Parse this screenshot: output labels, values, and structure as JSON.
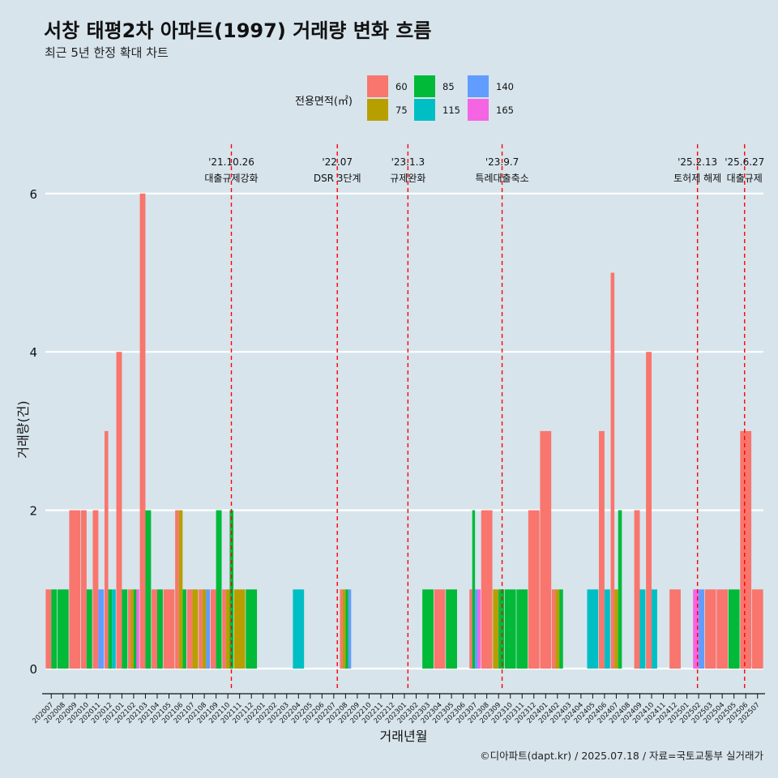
{
  "title": "서창 태평2차 아파트(1997) 거래량 변화 흐름",
  "subtitle": "최근 5년 한정 확대 차트",
  "caption": "©디아파트(dapt.kr) / 2025.07.18 / 자료=국토교통부 실거래가",
  "legend": {
    "title": "전용면적(㎡)",
    "items": [
      {
        "label": "60",
        "color": "#F8766D"
      },
      {
        "label": "75",
        "color": "#B79F00"
      },
      {
        "label": "85",
        "color": "#00BA38"
      },
      {
        "label": "115",
        "color": "#00BFC4"
      },
      {
        "label": "140",
        "color": "#619CFF"
      },
      {
        "label": "165",
        "color": "#F564E3"
      }
    ]
  },
  "chart_data": {
    "type": "bar",
    "xlabel": "거래년월",
    "ylabel": "거래량(건)",
    "ylim": [
      0,
      6.3
    ],
    "yticks": [
      "0",
      "2",
      "4",
      "6"
    ],
    "grid": "horizontal",
    "legend_position": "top",
    "categories": [
      "202007",
      "202008",
      "202009",
      "202010",
      "202011",
      "202012",
      "202101",
      "202102",
      "202103",
      "202104",
      "202105",
      "202106",
      "202107",
      "202108",
      "202109",
      "202110",
      "202111",
      "202112",
      "202201",
      "202202",
      "202203",
      "202204",
      "202205",
      "202206",
      "202207",
      "202208",
      "202209",
      "202210",
      "202211",
      "202212",
      "202301",
      "202302",
      "202303",
      "202304",
      "202305",
      "202306",
      "202307",
      "202308",
      "202309",
      "202310",
      "202311",
      "202312",
      "202401",
      "202402",
      "202403",
      "202404",
      "202405",
      "202406",
      "202407",
      "202408",
      "202409",
      "202410",
      "202411",
      "202412",
      "202501",
      "202502",
      "202503",
      "202504",
      "202505",
      "202506",
      "202507"
    ],
    "bars": [
      {
        "month": "202007",
        "segments": [
          {
            "area": "60",
            "count": 1
          },
          {
            "area": "85",
            "count": 1
          }
        ]
      },
      {
        "month": "202008",
        "segments": [
          {
            "area": "85",
            "count": 1
          }
        ]
      },
      {
        "month": "202009",
        "segments": [
          {
            "area": "60",
            "count": 2
          }
        ]
      },
      {
        "month": "202010",
        "segments": [
          {
            "area": "60",
            "count": 2
          },
          {
            "area": "85",
            "count": 1
          }
        ]
      },
      {
        "month": "202011",
        "segments": [
          {
            "area": "60",
            "count": 2
          },
          {
            "area": "140",
            "count": 1
          }
        ]
      },
      {
        "month": "202012",
        "segments": [
          {
            "area": "60",
            "count": 3
          },
          {
            "area": "85",
            "count": 1
          },
          {
            "area": "115",
            "count": 1
          }
        ]
      },
      {
        "month": "202101",
        "segments": [
          {
            "area": "60",
            "count": 4
          },
          {
            "area": "85",
            "count": 1
          }
        ]
      },
      {
        "month": "202102",
        "segments": [
          {
            "area": "60",
            "count": 1
          },
          {
            "area": "75",
            "count": 1
          },
          {
            "area": "85",
            "count": 1
          },
          {
            "area": "165",
            "count": 1
          }
        ]
      },
      {
        "month": "202103",
        "segments": [
          {
            "area": "60",
            "count": 6
          },
          {
            "area": "85",
            "count": 2
          }
        ]
      },
      {
        "month": "202104",
        "segments": [
          {
            "area": "60",
            "count": 1
          },
          {
            "area": "85",
            "count": 1
          }
        ]
      },
      {
        "month": "202105",
        "segments": [
          {
            "area": "60",
            "count": 1
          }
        ]
      },
      {
        "month": "202106",
        "segments": [
          {
            "area": "60",
            "count": 2
          },
          {
            "area": "75",
            "count": 2
          },
          {
            "area": "85",
            "count": 1
          }
        ]
      },
      {
        "month": "202107",
        "segments": [
          {
            "area": "60",
            "count": 1
          },
          {
            "area": "75",
            "count": 1
          }
        ]
      },
      {
        "month": "202108",
        "segments": [
          {
            "area": "60",
            "count": 1
          },
          {
            "area": "75",
            "count": 1
          },
          {
            "area": "140",
            "count": 1
          }
        ]
      },
      {
        "month": "202109",
        "segments": [
          {
            "area": "60",
            "count": 1
          },
          {
            "area": "85",
            "count": 2
          }
        ]
      },
      {
        "month": "202110",
        "segments": [
          {
            "area": "60",
            "count": 1
          },
          {
            "area": "75",
            "count": 1
          },
          {
            "area": "85",
            "count": 2
          }
        ]
      },
      {
        "month": "202111",
        "segments": [
          {
            "area": "75",
            "count": 1
          }
        ]
      },
      {
        "month": "202112",
        "segments": [
          {
            "area": "85",
            "count": 1
          }
        ]
      },
      {
        "month": "202201",
        "segments": []
      },
      {
        "month": "202202",
        "segments": []
      },
      {
        "month": "202203",
        "segments": []
      },
      {
        "month": "202204",
        "segments": [
          {
            "area": "115",
            "count": 1
          }
        ]
      },
      {
        "month": "202205",
        "segments": []
      },
      {
        "month": "202206",
        "segments": []
      },
      {
        "month": "202207",
        "segments": []
      },
      {
        "month": "202208",
        "segments": [
          {
            "area": "60",
            "count": 1
          },
          {
            "area": "75",
            "count": 1
          },
          {
            "area": "85",
            "count": 1
          },
          {
            "area": "140",
            "count": 1
          }
        ]
      },
      {
        "month": "202209",
        "segments": []
      },
      {
        "month": "202210",
        "segments": []
      },
      {
        "month": "202211",
        "segments": []
      },
      {
        "month": "202212",
        "segments": []
      },
      {
        "month": "202301",
        "segments": []
      },
      {
        "month": "202302",
        "segments": []
      },
      {
        "month": "202303",
        "segments": [
          {
            "area": "85",
            "count": 1
          }
        ]
      },
      {
        "month": "202304",
        "segments": [
          {
            "area": "60",
            "count": 1
          }
        ]
      },
      {
        "month": "202305",
        "segments": [
          {
            "area": "85",
            "count": 1
          }
        ]
      },
      {
        "month": "202306",
        "segments": []
      },
      {
        "month": "202307",
        "segments": [
          {
            "area": "60",
            "count": 1
          },
          {
            "area": "85",
            "count": 2
          },
          {
            "area": "140",
            "count": 1
          },
          {
            "area": "165",
            "count": 1
          }
        ]
      },
      {
        "month": "202308",
        "segments": [
          {
            "area": "60",
            "count": 2
          }
        ]
      },
      {
        "month": "202309",
        "segments": [
          {
            "area": "75",
            "count": 1
          },
          {
            "area": "85",
            "count": 1
          }
        ]
      },
      {
        "month": "202310",
        "segments": [
          {
            "area": "85",
            "count": 1
          }
        ]
      },
      {
        "month": "202311",
        "segments": [
          {
            "area": "85",
            "count": 1
          }
        ]
      },
      {
        "month": "202312",
        "segments": [
          {
            "area": "60",
            "count": 2
          }
        ]
      },
      {
        "month": "202401",
        "segments": [
          {
            "area": "60",
            "count": 3
          }
        ]
      },
      {
        "month": "202402",
        "segments": [
          {
            "area": "60",
            "count": 1
          },
          {
            "area": "75",
            "count": 1
          },
          {
            "area": "85",
            "count": 1
          }
        ]
      },
      {
        "month": "202403",
        "segments": []
      },
      {
        "month": "202404",
        "segments": []
      },
      {
        "month": "202405",
        "segments": [
          {
            "area": "115",
            "count": 1
          }
        ]
      },
      {
        "month": "202406",
        "segments": [
          {
            "area": "60",
            "count": 3
          },
          {
            "area": "115",
            "count": 1
          }
        ]
      },
      {
        "month": "202407",
        "segments": [
          {
            "area": "60",
            "count": 5
          },
          {
            "area": "75",
            "count": 1
          },
          {
            "area": "85",
            "count": 2
          }
        ]
      },
      {
        "month": "202408",
        "segments": []
      },
      {
        "month": "202409",
        "segments": [
          {
            "area": "60",
            "count": 2
          },
          {
            "area": "115",
            "count": 1
          }
        ]
      },
      {
        "month": "202410",
        "segments": [
          {
            "area": "60",
            "count": 4
          },
          {
            "area": "115",
            "count": 1
          }
        ]
      },
      {
        "month": "202411",
        "segments": []
      },
      {
        "month": "202412",
        "segments": [
          {
            "area": "60",
            "count": 1
          }
        ]
      },
      {
        "month": "202501",
        "segments": []
      },
      {
        "month": "202502",
        "segments": [
          {
            "area": "165",
            "count": 1
          },
          {
            "area": "140",
            "count": 1
          }
        ]
      },
      {
        "month": "202503",
        "segments": [
          {
            "area": "60",
            "count": 1
          }
        ]
      },
      {
        "month": "202504",
        "segments": [
          {
            "area": "60",
            "count": 1
          }
        ]
      },
      {
        "month": "202505",
        "segments": [
          {
            "area": "85",
            "count": 1
          }
        ]
      },
      {
        "month": "202506",
        "segments": [
          {
            "area": "60",
            "count": 3
          }
        ]
      },
      {
        "month": "202507",
        "segments": [
          {
            "area": "60",
            "count": 1
          }
        ]
      }
    ],
    "events": [
      {
        "date": "'21.10.26",
        "label": "대출규제강화",
        "x": 15.8
      },
      {
        "date": "'22.07",
        "label": "DSR 3단계",
        "x": 24.8
      },
      {
        "date": "'23.1.3",
        "label": "규제완화",
        "x": 30.8
      },
      {
        "date": "'23.9.7",
        "label": "특례대출축소",
        "x": 38.8
      },
      {
        "date": "'25.2.13",
        "label": "토허제 해제",
        "x": 55.4
      },
      {
        "date": "'25.6.27",
        "label": "대출규제",
        "x": 59.4
      }
    ]
  }
}
